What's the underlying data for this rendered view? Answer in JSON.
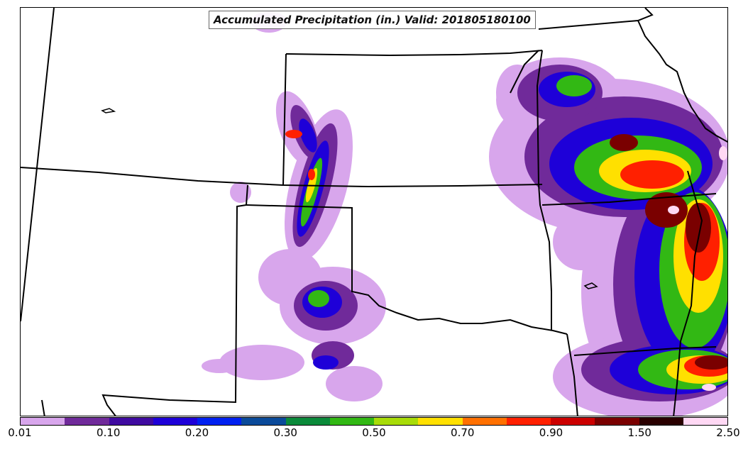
{
  "title": "Accumulated Precipitation (in.) Valid: 201805180100",
  "colorbar": {
    "colors": [
      "#d8a6ec",
      "#702a9a",
      "#3f0aa0",
      "#1e00d8",
      "#0020f0",
      "#0a4a9a",
      "#0a8a3a",
      "#32b814",
      "#a8dc08",
      "#ffe000",
      "#ff7000",
      "#ff2000",
      "#cc0000",
      "#7a0000",
      "#2a0000",
      "#ffd8f4"
    ],
    "tick_labels": [
      "0.01",
      "0.10",
      "0.20",
      "0.30",
      "0.50",
      "0.70",
      "0.90",
      "1.50",
      "2.50"
    ]
  },
  "legend_items": [
    "0.01",
    "0.10",
    "0.20",
    "0.30",
    "0.50",
    "0.70",
    "0.90",
    "1.50",
    "2.50"
  ]
}
